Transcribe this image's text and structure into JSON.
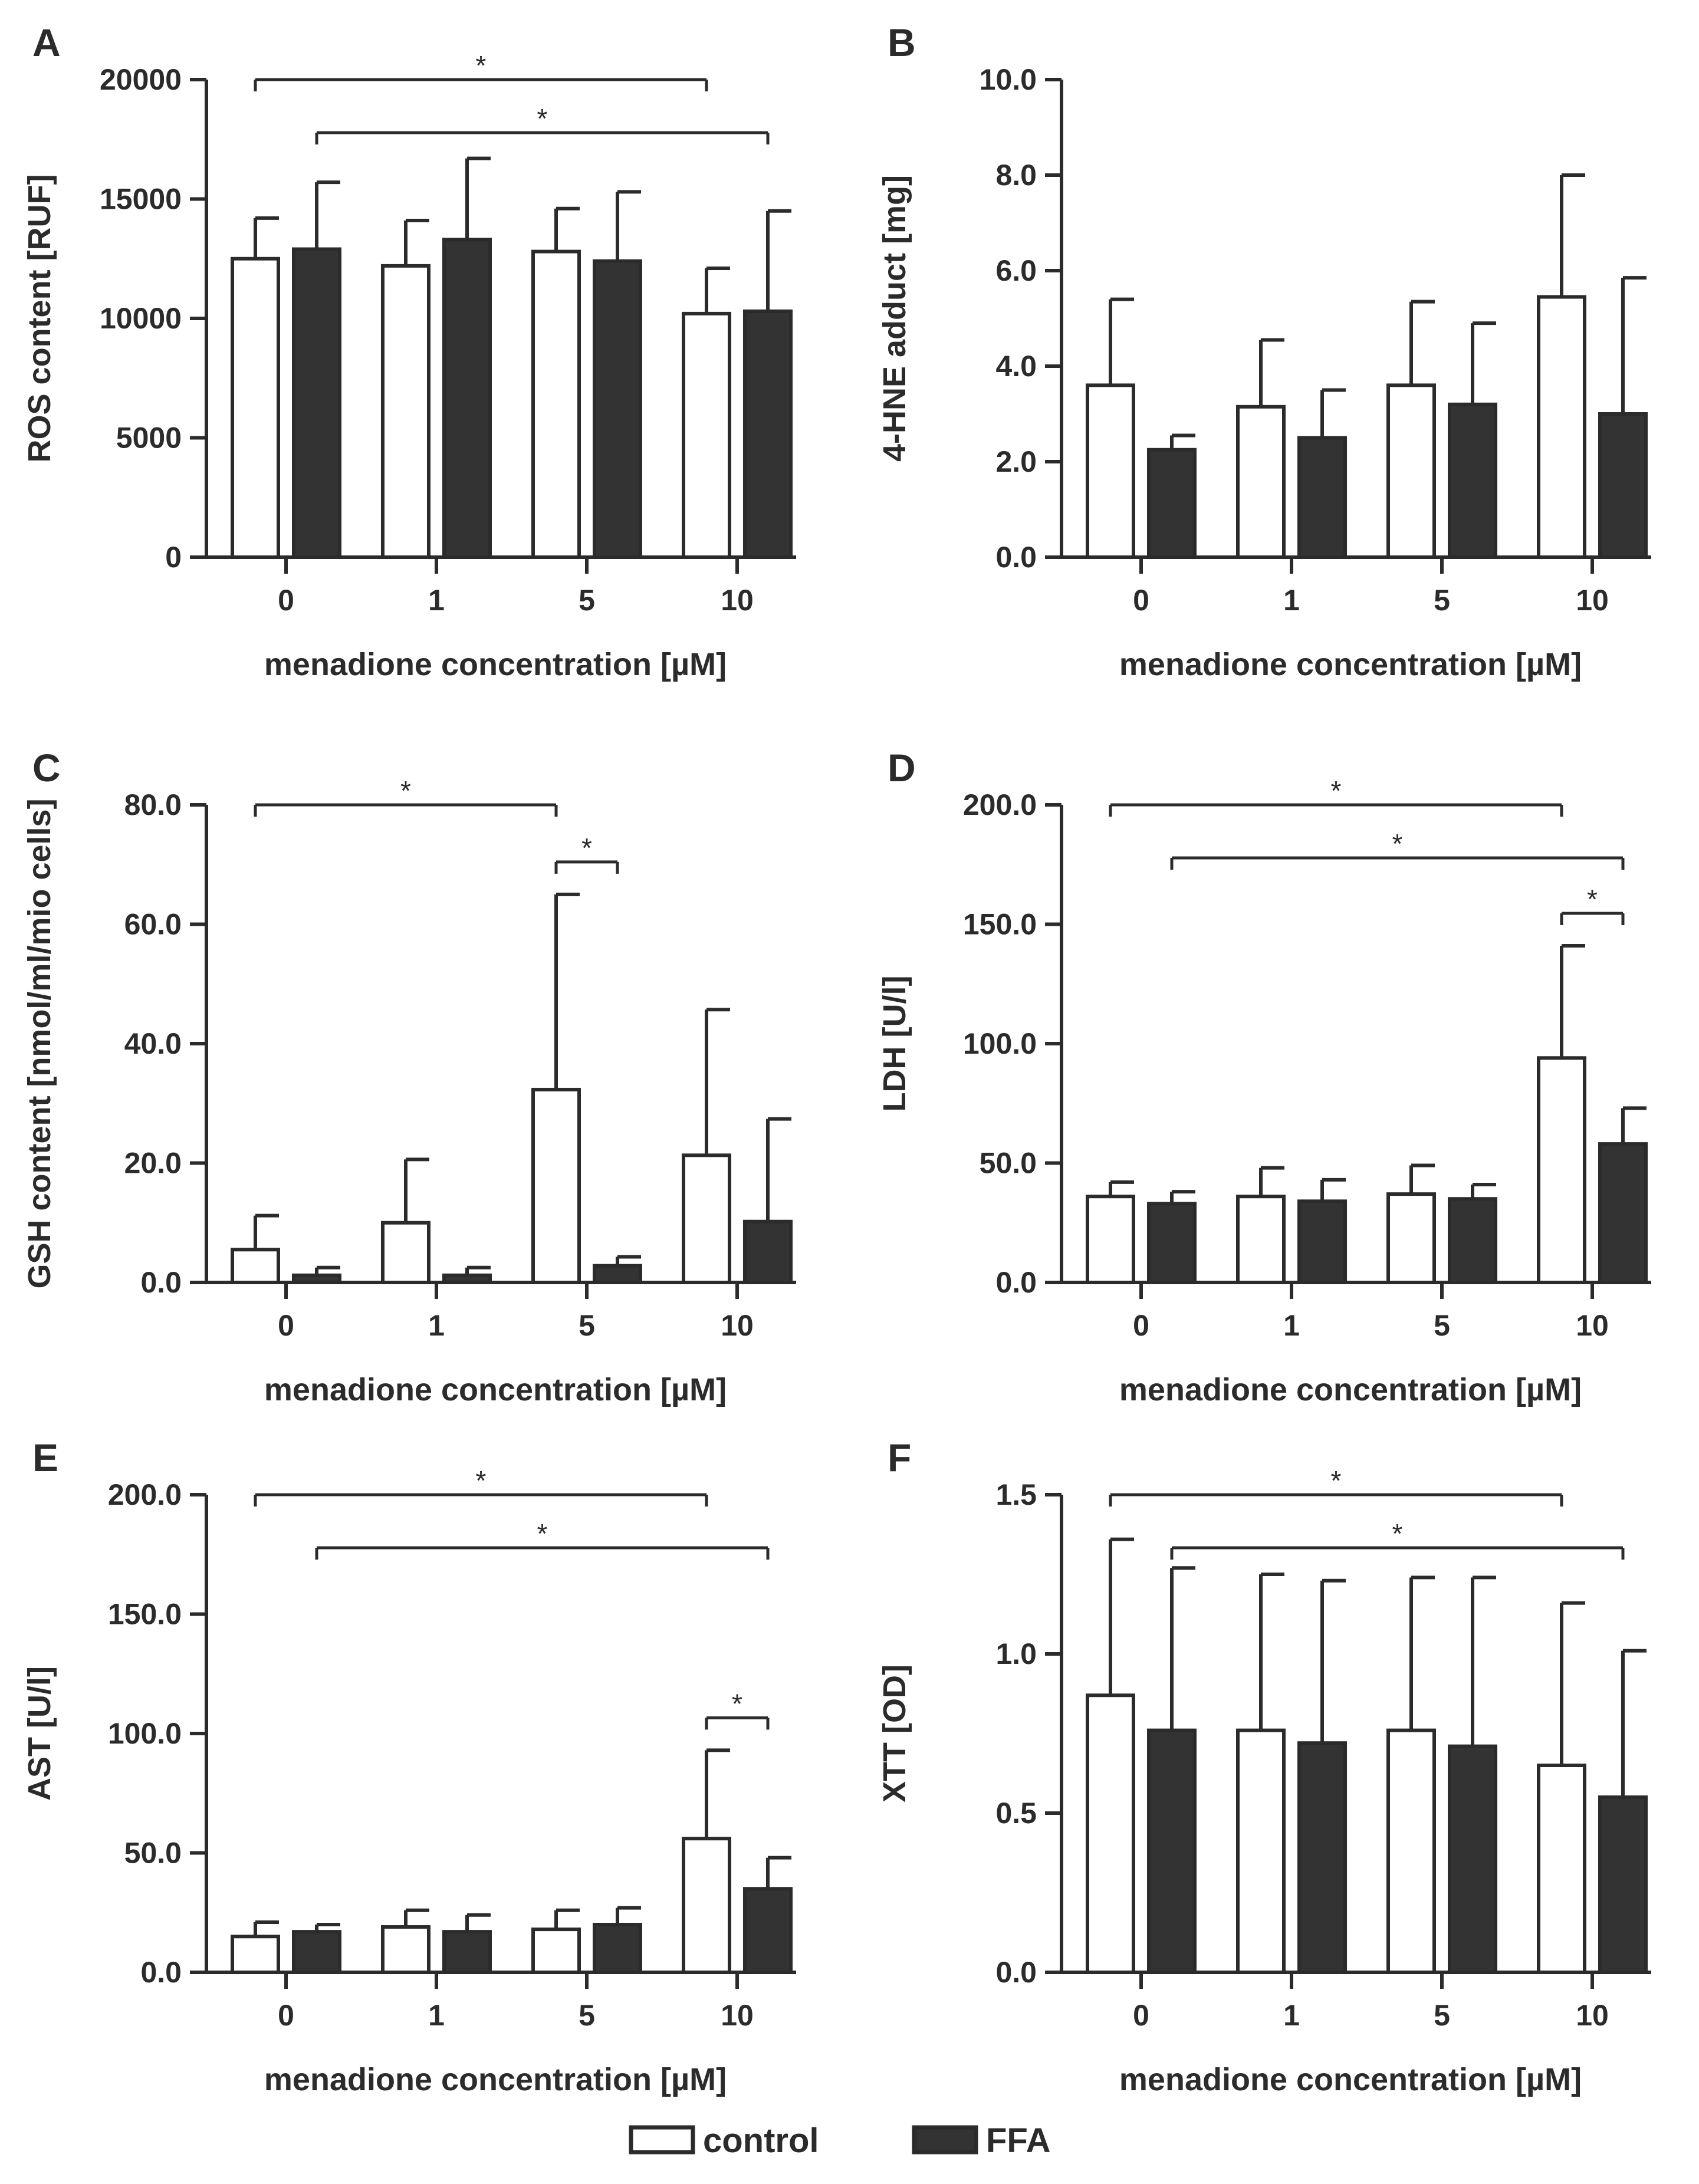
{
  "legend": {
    "control_label": "control",
    "ffa_label": "FFA",
    "control_color": "#ffffff",
    "ffa_color": "#333333"
  },
  "chart_data": [
    {
      "panel": "A",
      "type": "bar",
      "xlabel": "menadione concentration [µM]",
      "ylabel": "ROS content [RUF]",
      "categories": [
        "0",
        "1",
        "5",
        "10"
      ],
      "ylim": [
        0,
        20000
      ],
      "yticks": [
        "0",
        "5000",
        "10000",
        "15000",
        "20000"
      ],
      "series": [
        {
          "name": "control",
          "values": [
            12500,
            12200,
            12800,
            10200
          ],
          "errors": [
            1700,
            1900,
            1800,
            1900
          ]
        },
        {
          "name": "FFA",
          "values": [
            12900,
            13300,
            12400,
            10300
          ],
          "errors": [
            2800,
            3400,
            2900,
            4200
          ]
        }
      ],
      "significance": [
        {
          "from": "0 control",
          "to": "10 control",
          "label": "*"
        },
        {
          "from": "0 FFA",
          "to": "10 FFA",
          "label": "*"
        }
      ]
    },
    {
      "panel": "B",
      "type": "bar",
      "xlabel": "menadione concentration [µM]",
      "ylabel": "4-HNE adduct [mg]",
      "categories": [
        "0",
        "1",
        "5",
        "10"
      ],
      "ylim": [
        0,
        10
      ],
      "yticks": [
        "0.0",
        "2.0",
        "4.0",
        "6.0",
        "8.0",
        "10.0"
      ],
      "series": [
        {
          "name": "control",
          "values": [
            3.6,
            3.15,
            3.6,
            5.45
          ],
          "errors": [
            1.8,
            1.4,
            1.75,
            2.55
          ]
        },
        {
          "name": "FFA",
          "values": [
            2.25,
            2.5,
            3.2,
            3.0
          ],
          "errors": [
            0.3,
            1.0,
            1.7,
            2.85
          ]
        }
      ],
      "significance": []
    },
    {
      "panel": "C",
      "type": "bar",
      "xlabel": "menadione concentration [µM]",
      "ylabel": "GSH content [nmol/ml/mio cells]",
      "categories": [
        "0",
        "1",
        "5",
        "10"
      ],
      "ylim": [
        0,
        80
      ],
      "yticks": [
        "0.0",
        "20.0",
        "40.0",
        "60.0",
        "80.0"
      ],
      "series": [
        {
          "name": "control",
          "values": [
            5.5,
            10.0,
            32.3,
            21.3
          ],
          "errors": [
            5.7,
            10.6,
            32.7,
            24.4
          ]
        },
        {
          "name": "FFA",
          "values": [
            1.2,
            1.2,
            2.8,
            10.2
          ],
          "errors": [
            1.3,
            1.3,
            1.5,
            17.2
          ]
        }
      ],
      "significance": [
        {
          "from": "0 control",
          "to": "5 control",
          "label": "*"
        },
        {
          "from": "5 control",
          "to": "5 FFA",
          "label": "*"
        }
      ]
    },
    {
      "panel": "D",
      "type": "bar",
      "xlabel": "menadione concentration [µM]",
      "ylabel": "LDH [U/l]",
      "categories": [
        "0",
        "1",
        "5",
        "10"
      ],
      "ylim": [
        0,
        200
      ],
      "yticks": [
        "0.0",
        "50.0",
        "100.0",
        "150.0",
        "200.0"
      ],
      "series": [
        {
          "name": "control",
          "values": [
            36,
            36,
            37,
            94
          ],
          "errors": [
            6,
            12,
            12,
            47
          ]
        },
        {
          "name": "FFA",
          "values": [
            33,
            34,
            35,
            58
          ],
          "errors": [
            5,
            9,
            6,
            15
          ]
        }
      ],
      "significance": [
        {
          "from": "0 control",
          "to": "10 control",
          "label": "*"
        },
        {
          "from": "0 FFA",
          "to": "10 FFA",
          "label": "*"
        },
        {
          "from": "10 control",
          "to": "10 FFA",
          "label": "*"
        }
      ]
    },
    {
      "panel": "E",
      "type": "bar",
      "xlabel": "menadione concentration [µM]",
      "ylabel": "AST [U/l]",
      "categories": [
        "0",
        "1",
        "5",
        "10"
      ],
      "ylim": [
        0,
        200
      ],
      "yticks": [
        "0.0",
        "50.0",
        "100.0",
        "150.0",
        "200.0"
      ],
      "series": [
        {
          "name": "control",
          "values": [
            15,
            19,
            18,
            56
          ],
          "errors": [
            6,
            7,
            8,
            37
          ]
        },
        {
          "name": "FFA",
          "values": [
            17,
            17,
            20,
            35
          ],
          "errors": [
            3,
            7,
            7,
            13
          ]
        }
      ],
      "significance": [
        {
          "from": "0 control",
          "to": "10 control",
          "label": "*"
        },
        {
          "from": "0 FFA",
          "to": "10 FFA",
          "label": "*"
        },
        {
          "from": "10 control",
          "to": "10 FFA",
          "label": "*"
        }
      ]
    },
    {
      "panel": "F",
      "type": "bar",
      "xlabel": "menadione concentration [µM]",
      "ylabel": "XTT [OD]",
      "categories": [
        "0",
        "1",
        "5",
        "10"
      ],
      "ylim": [
        0,
        1.5
      ],
      "yticks": [
        "0.0",
        "0.5",
        "1.0",
        "1.5"
      ],
      "series": [
        {
          "name": "control",
          "values": [
            0.87,
            0.76,
            0.76,
            0.65
          ],
          "errors": [
            0.49,
            0.49,
            0.48,
            0.51
          ]
        },
        {
          "name": "FFA",
          "values": [
            0.76,
            0.72,
            0.71,
            0.55
          ],
          "errors": [
            0.51,
            0.51,
            0.53,
            0.46
          ]
        }
      ],
      "significance": [
        {
          "from": "0 control",
          "to": "10 control",
          "label": "*"
        },
        {
          "from": "0 FFA",
          "to": "10 FFA",
          "label": "*"
        }
      ]
    }
  ]
}
